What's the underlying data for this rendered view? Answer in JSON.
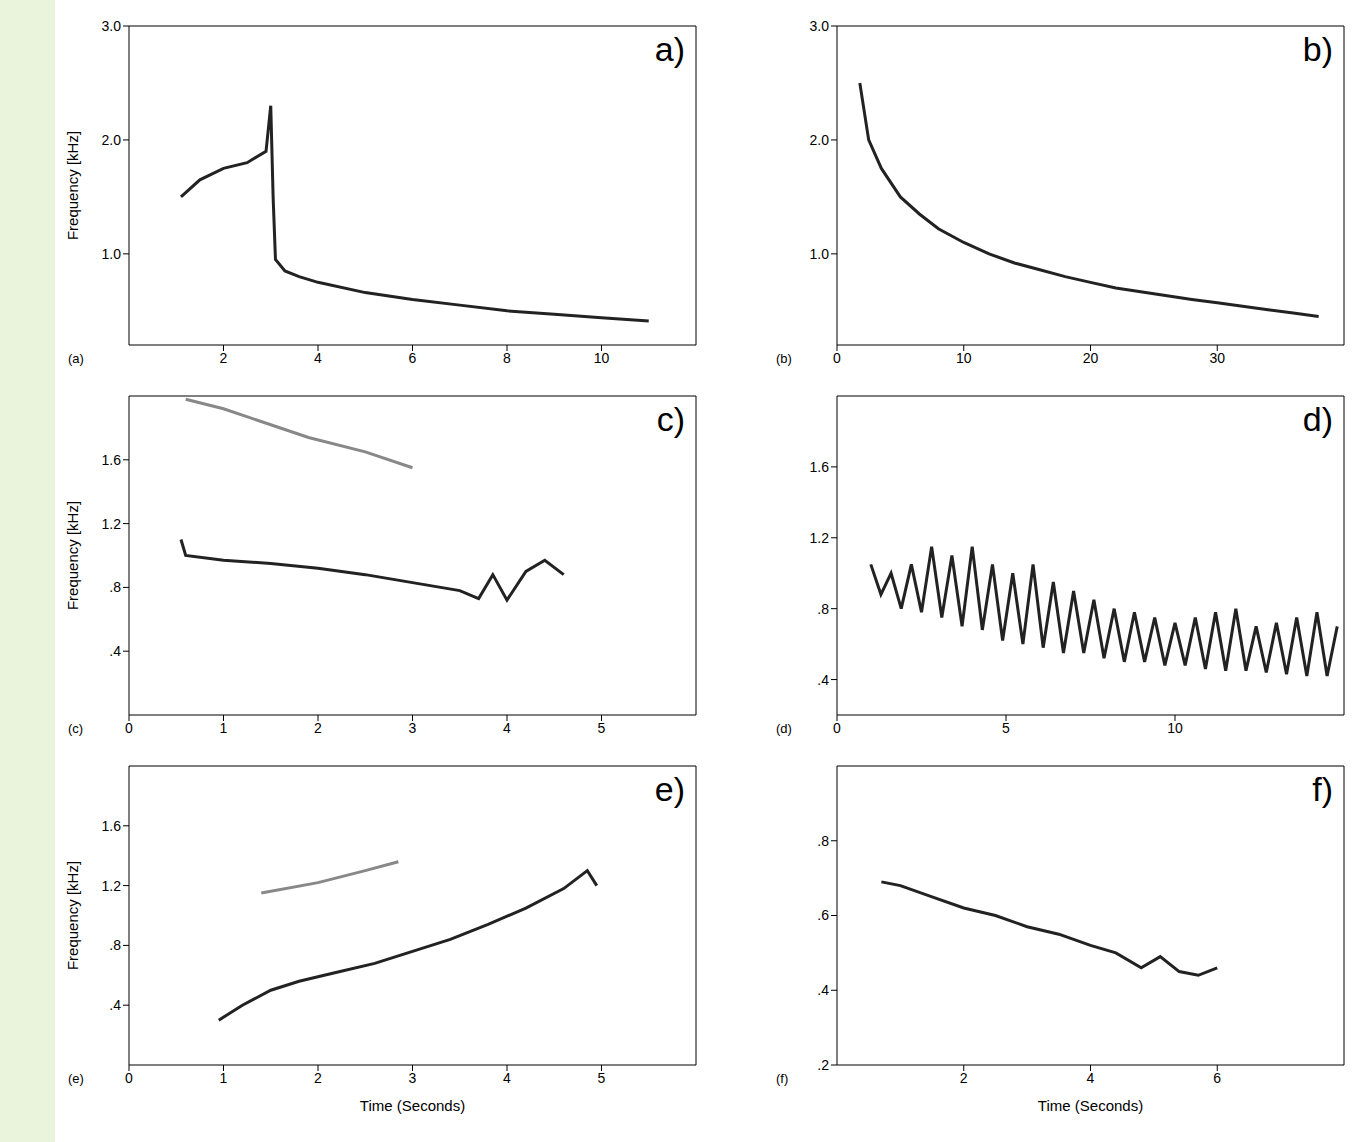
{
  "chart_data": [
    {
      "type": "line",
      "title": "a)",
      "annotations": [
        "(a)"
      ],
      "y_label": "Frequency [kHz]",
      "xlim": [
        0,
        12
      ],
      "xticks": [
        2,
        4,
        6,
        8,
        10
      ],
      "ylim": [
        0.2,
        3.0
      ],
      "yticks": [
        {
          "value": 1,
          "label": "1.0"
        },
        {
          "value": 2,
          "label": "2.0"
        },
        {
          "value": 3,
          "label": "3.0"
        }
      ],
      "grid": false,
      "series": [
        {
          "color": "#222222",
          "x": [
            1.1,
            1.5,
            2.0,
            2.5,
            2.9,
            3.0,
            3.05,
            3.1,
            3.3,
            3.6,
            4.0,
            5.0,
            6.0,
            7.0,
            8.0,
            9.0,
            10.0,
            11.0
          ],
          "values": [
            1.5,
            1.65,
            1.75,
            1.8,
            1.9,
            2.3,
            1.5,
            0.95,
            0.85,
            0.8,
            0.75,
            0.66,
            0.6,
            0.55,
            0.5,
            0.47,
            0.44,
            0.41
          ]
        }
      ]
    },
    {
      "type": "line",
      "title": "b)",
      "annotations": [
        "(b)"
      ],
      "xlim": [
        0,
        40
      ],
      "xticks": [
        0,
        10,
        20,
        30
      ],
      "ylim": [
        0.2,
        3.0
      ],
      "yticks": [
        {
          "value": 1,
          "label": "1.0"
        },
        {
          "value": 2,
          "label": "2.0"
        },
        {
          "value": 3,
          "label": "3.0"
        }
      ],
      "grid": false,
      "series": [
        {
          "color": "#222222",
          "x": [
            1.8,
            2.5,
            3.5,
            5,
            6.5,
            8,
            10,
            12,
            14,
            16,
            18,
            20,
            22,
            25,
            28,
            30,
            32,
            34,
            36,
            38
          ],
          "values": [
            2.5,
            2.0,
            1.75,
            1.5,
            1.35,
            1.22,
            1.1,
            1.0,
            0.92,
            0.86,
            0.8,
            0.75,
            0.7,
            0.65,
            0.6,
            0.57,
            0.54,
            0.51,
            0.48,
            0.45
          ]
        }
      ]
    },
    {
      "type": "line",
      "title": "c)",
      "annotations": [
        "(c)"
      ],
      "y_label": "Frequency [kHz]",
      "xlim": [
        0,
        6
      ],
      "xticks": [
        0,
        1,
        2,
        3,
        4,
        5
      ],
      "ylim": [
        0,
        2.0
      ],
      "yticks": [
        {
          "value": 0.4,
          "label": ".4"
        },
        {
          "value": 0.8,
          "label": ".8"
        },
        1.2,
        1.6
      ],
      "grid": false,
      "series": [
        {
          "color": "#222222",
          "x": [
            0.55,
            0.6,
            1.0,
            1.5,
            2.0,
            2.5,
            3.0,
            3.5,
            3.7,
            3.85,
            4.0,
            4.2,
            4.4,
            4.6
          ],
          "values": [
            1.1,
            1.0,
            0.97,
            0.95,
            0.92,
            0.88,
            0.83,
            0.78,
            0.73,
            0.88,
            0.72,
            0.9,
            0.97,
            0.88
          ]
        },
        {
          "color": "#888888",
          "x": [
            0.6,
            1.0,
            1.5,
            1.9,
            2.5,
            3.0
          ],
          "values": [
            1.98,
            1.92,
            1.82,
            1.74,
            1.65,
            1.55
          ]
        }
      ]
    },
    {
      "type": "line",
      "title": "d)",
      "annotations": [
        "(d)"
      ],
      "xlim": [
        0,
        15
      ],
      "xticks": [
        0,
        5,
        10
      ],
      "ylim": [
        0.2,
        2.0
      ],
      "yticks": [
        {
          "value": 0.4,
          "label": ".4"
        },
        {
          "value": 0.8,
          "label": ".8"
        },
        1.2,
        1.6
      ],
      "grid": false,
      "series": [
        {
          "color": "#222222",
          "x": [
            1.0,
            1.3,
            1.6,
            1.9,
            2.2,
            2.5,
            2.8,
            3.1,
            3.4,
            3.7,
            4.0,
            4.3,
            4.6,
            4.9,
            5.2,
            5.5,
            5.8,
            6.1,
            6.4,
            6.7,
            7.0,
            7.3,
            7.6,
            7.9,
            8.2,
            8.5,
            8.8,
            9.1,
            9.4,
            9.7,
            10.0,
            10.3,
            10.6,
            10.9,
            11.2,
            11.5,
            11.8,
            12.1,
            12.4,
            12.7,
            13.0,
            13.3,
            13.6,
            13.9,
            14.2,
            14.5,
            14.8
          ],
          "values": [
            1.05,
            0.88,
            1.0,
            0.8,
            1.05,
            0.78,
            1.15,
            0.75,
            1.1,
            0.7,
            1.15,
            0.68,
            1.05,
            0.62,
            1.0,
            0.6,
            1.05,
            0.58,
            0.95,
            0.55,
            0.9,
            0.55,
            0.85,
            0.52,
            0.8,
            0.5,
            0.78,
            0.5,
            0.75,
            0.48,
            0.72,
            0.48,
            0.75,
            0.46,
            0.78,
            0.45,
            0.8,
            0.45,
            0.7,
            0.44,
            0.72,
            0.43,
            0.75,
            0.42,
            0.78,
            0.42,
            0.7
          ]
        }
      ]
    },
    {
      "type": "line",
      "title": "e)",
      "annotations": [
        "(e)"
      ],
      "y_label": "Frequency [kHz]",
      "x_label": "Time (Seconds)",
      "xlim": [
        0,
        6
      ],
      "xticks": [
        0,
        1,
        2,
        3,
        4,
        5
      ],
      "ylim": [
        0,
        2.0
      ],
      "yticks": [
        {
          "value": 0.4,
          "label": ".4"
        },
        {
          "value": 0.8,
          "label": ".8"
        },
        1.2,
        1.6
      ],
      "grid": false,
      "series": [
        {
          "color": "#222222",
          "x": [
            0.95,
            1.2,
            1.5,
            1.8,
            2.2,
            2.6,
            3.0,
            3.4,
            3.8,
            4.2,
            4.6,
            4.85,
            4.95
          ],
          "values": [
            0.3,
            0.4,
            0.5,
            0.56,
            0.62,
            0.68,
            0.76,
            0.84,
            0.94,
            1.05,
            1.18,
            1.3,
            1.2
          ]
        },
        {
          "color": "#888888",
          "x": [
            1.4,
            2.0,
            2.5,
            2.85
          ],
          "values": [
            1.15,
            1.22,
            1.3,
            1.36
          ]
        }
      ]
    },
    {
      "type": "line",
      "title": "f)",
      "annotations": [
        "(f)"
      ],
      "x_label": "Time (Seconds)",
      "xlim": [
        0,
        8
      ],
      "xticks": [
        2,
        4,
        6
      ],
      "ylim": [
        0.2,
        1.0
      ],
      "yticks": [
        {
          "value": 0.2,
          "label": ".2"
        },
        {
          "value": 0.4,
          "label": ".4"
        },
        {
          "value": 0.6,
          "label": ".6"
        },
        {
          "value": 0.8,
          "label": ".8"
        }
      ],
      "grid": false,
      "series": [
        {
          "color": "#222222",
          "x": [
            0.7,
            1.0,
            1.5,
            2.0,
            2.5,
            3.0,
            3.5,
            4.0,
            4.4,
            4.8,
            5.1,
            5.4,
            5.7,
            6.0
          ],
          "values": [
            0.69,
            0.68,
            0.65,
            0.62,
            0.6,
            0.57,
            0.55,
            0.52,
            0.5,
            0.46,
            0.49,
            0.45,
            0.44,
            0.46
          ]
        }
      ]
    }
  ]
}
